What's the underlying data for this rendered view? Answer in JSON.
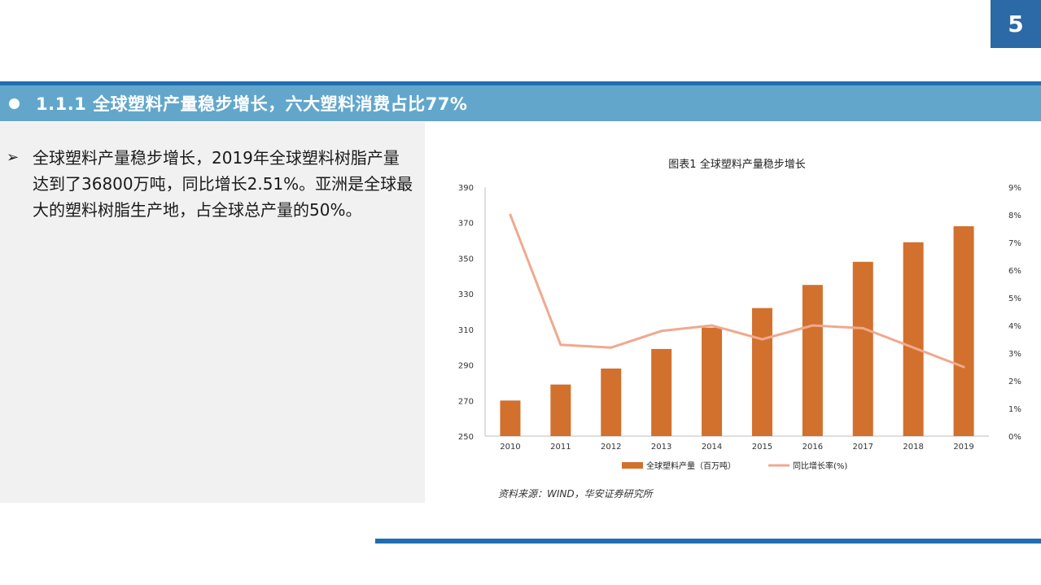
{
  "page": {
    "number": "5"
  },
  "section": {
    "title": "1.1.1 全球塑料产量稳步增长，六大塑料消费占比77%"
  },
  "body": {
    "paragraph": "全球塑料产量稳步增长，2019年全球塑料树脂产量达到了36800万吨，同比增长2.51%。亚洲是全球最大的塑料树脂生产地，占全球总产量的50%。"
  },
  "chart_data": {
    "type": "bar",
    "title": "图表1 全球塑料产量稳步增长",
    "categories": [
      "2010",
      "2011",
      "2012",
      "2013",
      "2014",
      "2015",
      "2016",
      "2017",
      "2018",
      "2019"
    ],
    "series": [
      {
        "name": "全球塑料产量（百万吨）",
        "type": "bar",
        "axis": "left",
        "color": "#d2702d",
        "values": [
          270,
          279,
          288,
          299,
          311,
          322,
          335,
          348,
          359,
          368
        ]
      },
      {
        "name": "同比增长率(%)",
        "type": "line",
        "axis": "right",
        "color": "#f0a98e",
        "values": [
          8.0,
          3.3,
          3.2,
          3.8,
          4.0,
          3.5,
          4.0,
          3.9,
          3.2,
          2.5
        ]
      }
    ],
    "ylim_left": [
      250,
      390
    ],
    "yticks_left": [
      "250",
      "270",
      "290",
      "310",
      "330",
      "350",
      "370",
      "390"
    ],
    "ylim_right": [
      0,
      9
    ],
    "yticks_right": [
      "0%",
      "1%",
      "2%",
      "3%",
      "4%",
      "5%",
      "6%",
      "7%",
      "8%",
      "9%"
    ],
    "legend": "bottom",
    "grid": false,
    "source": "资料来源：WIND，华安证券研究所"
  }
}
